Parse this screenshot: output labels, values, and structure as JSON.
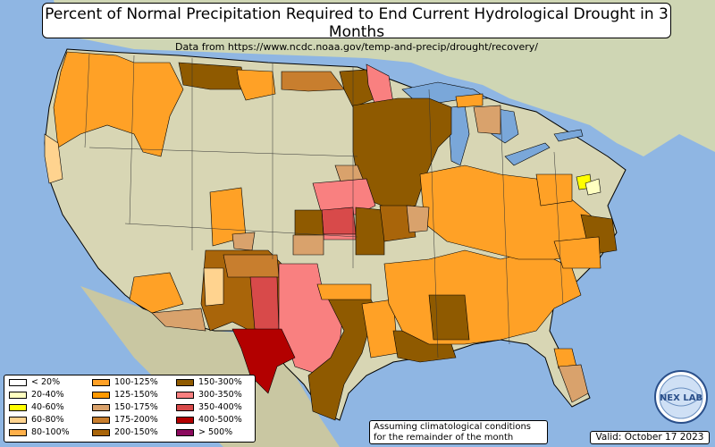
{
  "title": "Percent of Normal Precipitation Required to End Current Hydrological Drought in 3 Months",
  "subtitle": "Data from https://www.ncdc.noaa.gov/temp-and-precip/drought/recovery/",
  "legend": {
    "items": [
      {
        "label": "< 20%",
        "color": "#ffffff"
      },
      {
        "label": "20-40%",
        "color": "#ffffc0"
      },
      {
        "label": "40-60%",
        "color": "#ffff00"
      },
      {
        "label": "60-80%",
        "color": "#ffd38f"
      },
      {
        "label": "80-100%",
        "color": "#ffb04a"
      },
      {
        "label": "100-125%",
        "color": "#ffa126"
      },
      {
        "label": "125-150%",
        "color": "#ff9900"
      },
      {
        "label": "150-175%",
        "color": "#d9a26c"
      },
      {
        "label": "175-200%",
        "color": "#c87e2e"
      },
      {
        "label": "200-150%",
        "color": "#a9650a"
      },
      {
        "label": "150-300%",
        "color": "#8f5a00"
      },
      {
        "label": "300-350%",
        "color": "#f98080"
      },
      {
        "label": "350-400%",
        "color": "#d84a4a"
      },
      {
        "label": "400-500%",
        "color": "#b30000"
      },
      {
        "label": "> 500%",
        "color": "#8b0a5e"
      }
    ]
  },
  "note": {
    "line1": "Assuming climatological conditions",
    "line2": "for the remainder of the month"
  },
  "valid": "Valid: October 17 2023",
  "logo_text": "NEX LAB",
  "colors": {
    "ocean": "#8fb6e3",
    "land": "#d6d8bb",
    "green_land": "#b9c99a",
    "lake": "#7aa7d9"
  }
}
